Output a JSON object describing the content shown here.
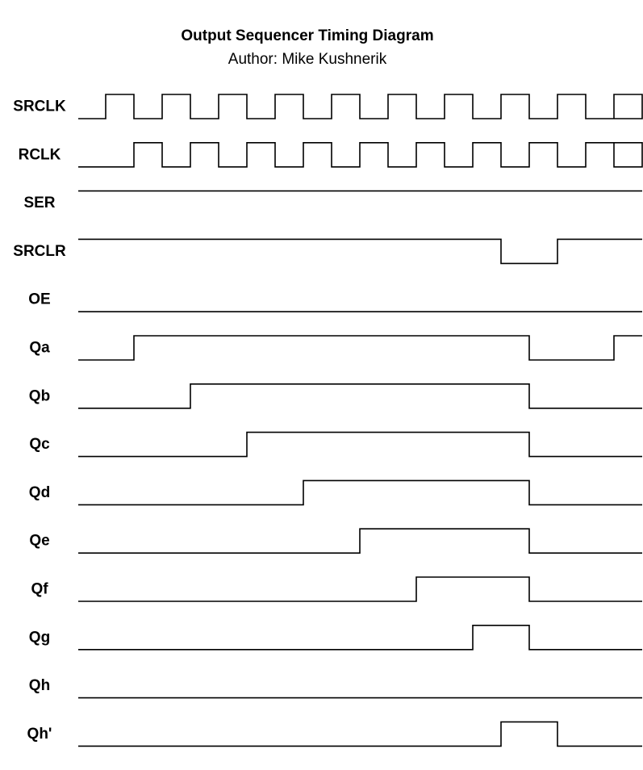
{
  "diagram": {
    "title": "Output Sequencer Timing Diagram",
    "subtitle": "Author: Mike Kushnerik",
    "line_color": "#000000",
    "background_color": "#ffffff",
    "signals": [
      {
        "name": "SRCLK",
        "levels": [
          0,
          1,
          0,
          1,
          0,
          1,
          0,
          1,
          0,
          1,
          0,
          1,
          0,
          1,
          0,
          1,
          0,
          1,
          0,
          1,
          0
        ]
      },
      {
        "name": "RCLK",
        "levels": [
          0,
          0,
          1,
          0,
          1,
          0,
          1,
          0,
          1,
          0,
          1,
          0,
          1,
          0,
          1,
          0,
          1,
          0,
          1,
          0,
          1
        ]
      },
      {
        "name": "SER",
        "levels": [
          1,
          1,
          1,
          1,
          1,
          1,
          1,
          1,
          1,
          1,
          1,
          1,
          1,
          1,
          1,
          1,
          1,
          1,
          1,
          1,
          1
        ]
      },
      {
        "name": "SRCLR",
        "levels": [
          1,
          1,
          1,
          1,
          1,
          1,
          1,
          1,
          1,
          1,
          1,
          1,
          1,
          1,
          1,
          0,
          0,
          1,
          1,
          1,
          1
        ]
      },
      {
        "name": "OE",
        "levels": [
          0,
          0,
          0,
          0,
          0,
          0,
          0,
          0,
          0,
          0,
          0,
          0,
          0,
          0,
          0,
          0,
          0,
          0,
          0,
          0,
          0
        ]
      },
      {
        "name": "Qa",
        "levels": [
          0,
          0,
          1,
          1,
          1,
          1,
          1,
          1,
          1,
          1,
          1,
          1,
          1,
          1,
          1,
          1,
          0,
          0,
          0,
          1,
          1
        ]
      },
      {
        "name": "Qb",
        "levels": [
          0,
          0,
          0,
          0,
          1,
          1,
          1,
          1,
          1,
          1,
          1,
          1,
          1,
          1,
          1,
          1,
          0,
          0,
          0,
          0,
          0
        ]
      },
      {
        "name": "Qc",
        "levels": [
          0,
          0,
          0,
          0,
          0,
          0,
          1,
          1,
          1,
          1,
          1,
          1,
          1,
          1,
          1,
          1,
          0,
          0,
          0,
          0,
          0
        ]
      },
      {
        "name": "Qd",
        "levels": [
          0,
          0,
          0,
          0,
          0,
          0,
          0,
          0,
          1,
          1,
          1,
          1,
          1,
          1,
          1,
          1,
          0,
          0,
          0,
          0,
          0
        ]
      },
      {
        "name": "Qe",
        "levels": [
          0,
          0,
          0,
          0,
          0,
          0,
          0,
          0,
          0,
          0,
          1,
          1,
          1,
          1,
          1,
          1,
          0,
          0,
          0,
          0,
          0
        ]
      },
      {
        "name": "Qf",
        "levels": [
          0,
          0,
          0,
          0,
          0,
          0,
          0,
          0,
          0,
          0,
          0,
          0,
          1,
          1,
          1,
          1,
          0,
          0,
          0,
          0,
          0
        ]
      },
      {
        "name": "Qg",
        "levels": [
          0,
          0,
          0,
          0,
          0,
          0,
          0,
          0,
          0,
          0,
          0,
          0,
          0,
          0,
          1,
          1,
          0,
          0,
          0,
          0,
          0
        ]
      },
      {
        "name": "Qh",
        "levels": [
          0,
          0,
          0,
          0,
          0,
          0,
          0,
          0,
          0,
          0,
          0,
          0,
          0,
          0,
          0,
          0,
          0,
          0,
          0,
          0,
          0
        ]
      },
      {
        "name": "Qh'",
        "levels": [
          0,
          0,
          0,
          0,
          0,
          0,
          0,
          0,
          0,
          0,
          0,
          0,
          0,
          0,
          0,
          1,
          1,
          0,
          0,
          0,
          0
        ]
      }
    ]
  }
}
